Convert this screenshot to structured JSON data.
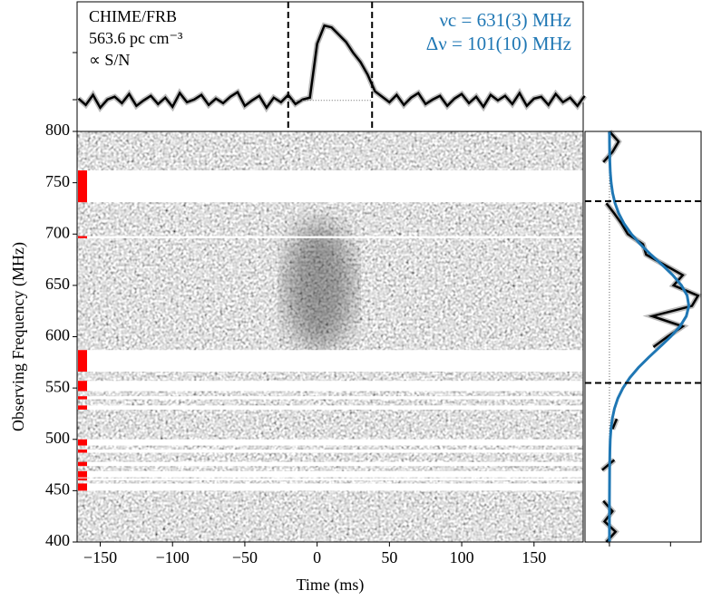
{
  "chart_data": [
    {
      "type": "profile",
      "annotations": [
        "CHIME/FRB",
        "563.6 pc cm⁻³",
        "∝ S/N"
      ],
      "fit_annotations": [
        "νc = 631(3) MHz",
        "Δν = 101(10) MHz"
      ],
      "annotation_color": "#1f77b4",
      "x": [
        -165,
        -160,
        -155,
        -150,
        -145,
        -140,
        -135,
        -130,
        -125,
        -120,
        -115,
        -110,
        -105,
        -100,
        -95,
        -90,
        -85,
        -80,
        -75,
        -70,
        -65,
        -60,
        -55,
        -50,
        -45,
        -40,
        -35,
        -30,
        -25,
        -20,
        -15,
        -10,
        -5,
        0,
        5,
        10,
        15,
        20,
        25,
        30,
        35,
        40,
        45,
        50,
        55,
        60,
        65,
        70,
        75,
        80,
        85,
        90,
        95,
        100,
        105,
        110,
        115,
        120,
        125,
        130,
        135,
        140,
        145,
        150,
        155,
        160,
        165,
        170,
        175,
        180,
        185
      ],
      "values": [
        0.02,
        -0.05,
        0.06,
        -0.08,
        0.01,
        0.04,
        -0.03,
        0.07,
        -0.06,
        0.0,
        0.05,
        -0.04,
        0.03,
        -0.07,
        0.08,
        -0.02,
        0.01,
        0.06,
        -0.05,
        0.02,
        -0.03,
        0.04,
        0.09,
        -0.06,
        0.0,
        0.05,
        -0.08,
        0.03,
        -0.02,
        0.06,
        -0.04,
        0.01,
        0.03,
        0.62,
        0.82,
        0.8,
        0.72,
        0.64,
        0.52,
        0.42,
        0.28,
        0.1,
        0.04,
        -0.02,
        0.06,
        -0.05,
        0.03,
        0.08,
        -0.04,
        0.01,
        0.05,
        -0.06,
        0.02,
        0.07,
        -0.03,
        0.04,
        -0.07,
        0.06,
        0.0,
        0.05,
        -0.04,
        0.08,
        -0.06,
        0.02,
        0.04,
        -0.05,
        0.07,
        -0.02,
        0.03,
        -0.06,
        0.05
      ],
      "color": "#000000",
      "vlines": [
        -20,
        38
      ],
      "xlim": [
        -166,
        184
      ],
      "ylim": [
        -0.32,
        1.08
      ]
    },
    {
      "type": "heatmap",
      "xlabel": "Time (ms)",
      "ylabel": "Observing Frequency (MHz)",
      "xlim": [
        -166,
        184
      ],
      "ylim": [
        400,
        800
      ],
      "xticks": [
        {
          "value": -150,
          "label": "−150"
        },
        {
          "value": -100,
          "label": "−100"
        },
        {
          "value": -50,
          "label": "−50"
        },
        0,
        50,
        100,
        150
      ],
      "yticks": [
        400,
        450,
        500,
        550,
        600,
        650,
        700,
        750,
        800
      ],
      "masked_bands": [
        [
          731,
          762
        ],
        [
          696,
          698
        ],
        [
          566,
          587
        ],
        [
          547,
          557
        ],
        [
          539,
          542
        ],
        [
          529,
          533
        ],
        [
          494,
          500
        ],
        [
          487,
          490
        ],
        [
          474,
          478
        ],
        [
          463,
          469
        ],
        [
          460,
          462
        ],
        [
          450,
          457
        ]
      ],
      "mask_color": "#ff0000"
    },
    {
      "type": "spectrum",
      "y": [
        400,
        410,
        420,
        430,
        440,
        450,
        460,
        470,
        480,
        490,
        500,
        510,
        520,
        530,
        540,
        550,
        560,
        570,
        580,
        590,
        600,
        610,
        620,
        630,
        640,
        650,
        660,
        670,
        680,
        690,
        700,
        710,
        720,
        730,
        740,
        750,
        760,
        770,
        780,
        790,
        800
      ],
      "values": [
        -0.05,
        0.1,
        -0.08,
        0.05,
        -0.1,
        null,
        null,
        -0.12,
        0.08,
        null,
        null,
        0.05,
        0.12,
        null,
        null,
        null,
        0.28,
        null,
        null,
        0.72,
        0.95,
        1.2,
        0.7,
        1.35,
        1.45,
        1.05,
        1.2,
        0.9,
        0.6,
        0.55,
        0.3,
        0.2,
        0.08,
        -0.05,
        null,
        null,
        null,
        -0.1,
        0.05,
        0.15,
        0.0
      ],
      "color": "#000000",
      "fit": {
        "color": "#1f77b4",
        "values": [
          0,
          0,
          0,
          0,
          0,
          0.001,
          0.002,
          0.003,
          0.005,
          0.008,
          0.013,
          0.025,
          0.046,
          0.082,
          0.138,
          0.221,
          0.333,
          0.475,
          0.644,
          0.825,
          1.002,
          1.154,
          1.258,
          1.3,
          1.272,
          1.179,
          1.036,
          0.862,
          0.679,
          0.507,
          0.359,
          0.24,
          0.153,
          0.092,
          0.052,
          0.028,
          0.014,
          0.007,
          0.003,
          0.001,
          0
        ]
      },
      "hlines": [
        555,
        732
      ],
      "xlim": [
        -0.4,
        1.5
      ],
      "xticks": [
        0,
        1
      ],
      "ylim": [
        400,
        800
      ]
    }
  ]
}
